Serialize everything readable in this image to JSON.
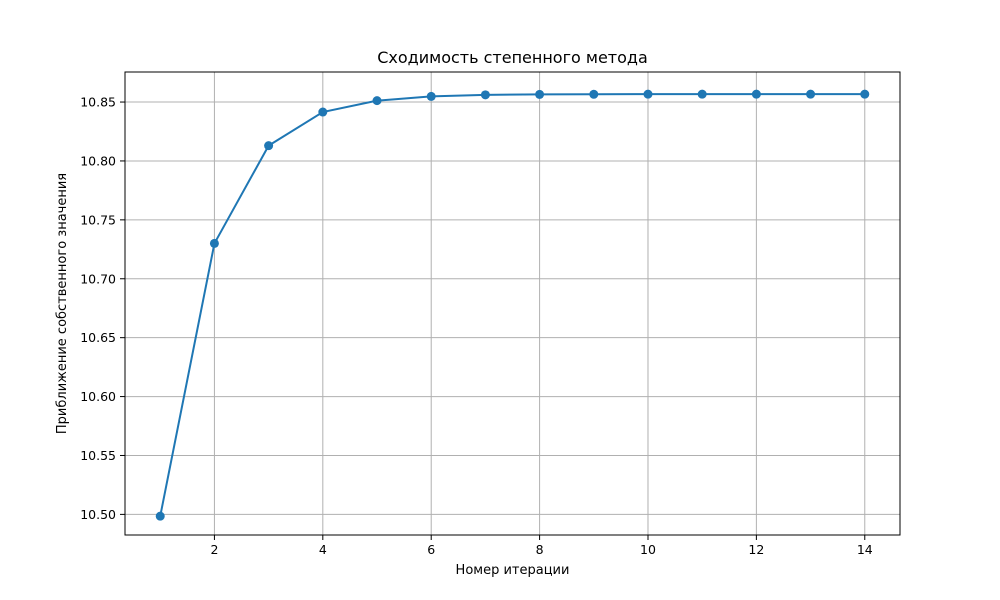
{
  "chart_data": {
    "type": "line",
    "title": "Сходимость степенного метода",
    "xlabel": "Номер итерации",
    "ylabel": "Приближение собственного значения",
    "xlim": [
      0.35,
      14.65
    ],
    "ylim": [
      10.4825,
      10.8755
    ],
    "xticks": [
      2,
      4,
      6,
      8,
      10,
      12,
      14
    ],
    "xtick_labels": [
      "2",
      "4",
      "6",
      "8",
      "10",
      "12",
      "14"
    ],
    "yticks": [
      10.5,
      10.55,
      10.6,
      10.65,
      10.7,
      10.75,
      10.8,
      10.85
    ],
    "ytick_labels": [
      "10.50",
      "10.55",
      "10.60",
      "10.65",
      "10.70",
      "10.75",
      "10.80",
      "10.85"
    ],
    "grid": true,
    "series": [
      {
        "color": "#1f77b4",
        "marker": "circle",
        "x": [
          1,
          2,
          3,
          4,
          5,
          6,
          7,
          8,
          9,
          10,
          11,
          12,
          13,
          14
        ],
        "y": [
          10.4985,
          10.73,
          10.813,
          10.8415,
          10.8512,
          10.8548,
          10.8561,
          10.8565,
          10.8566,
          10.8567,
          10.8567,
          10.8567,
          10.8567,
          10.8567
        ]
      }
    ]
  }
}
